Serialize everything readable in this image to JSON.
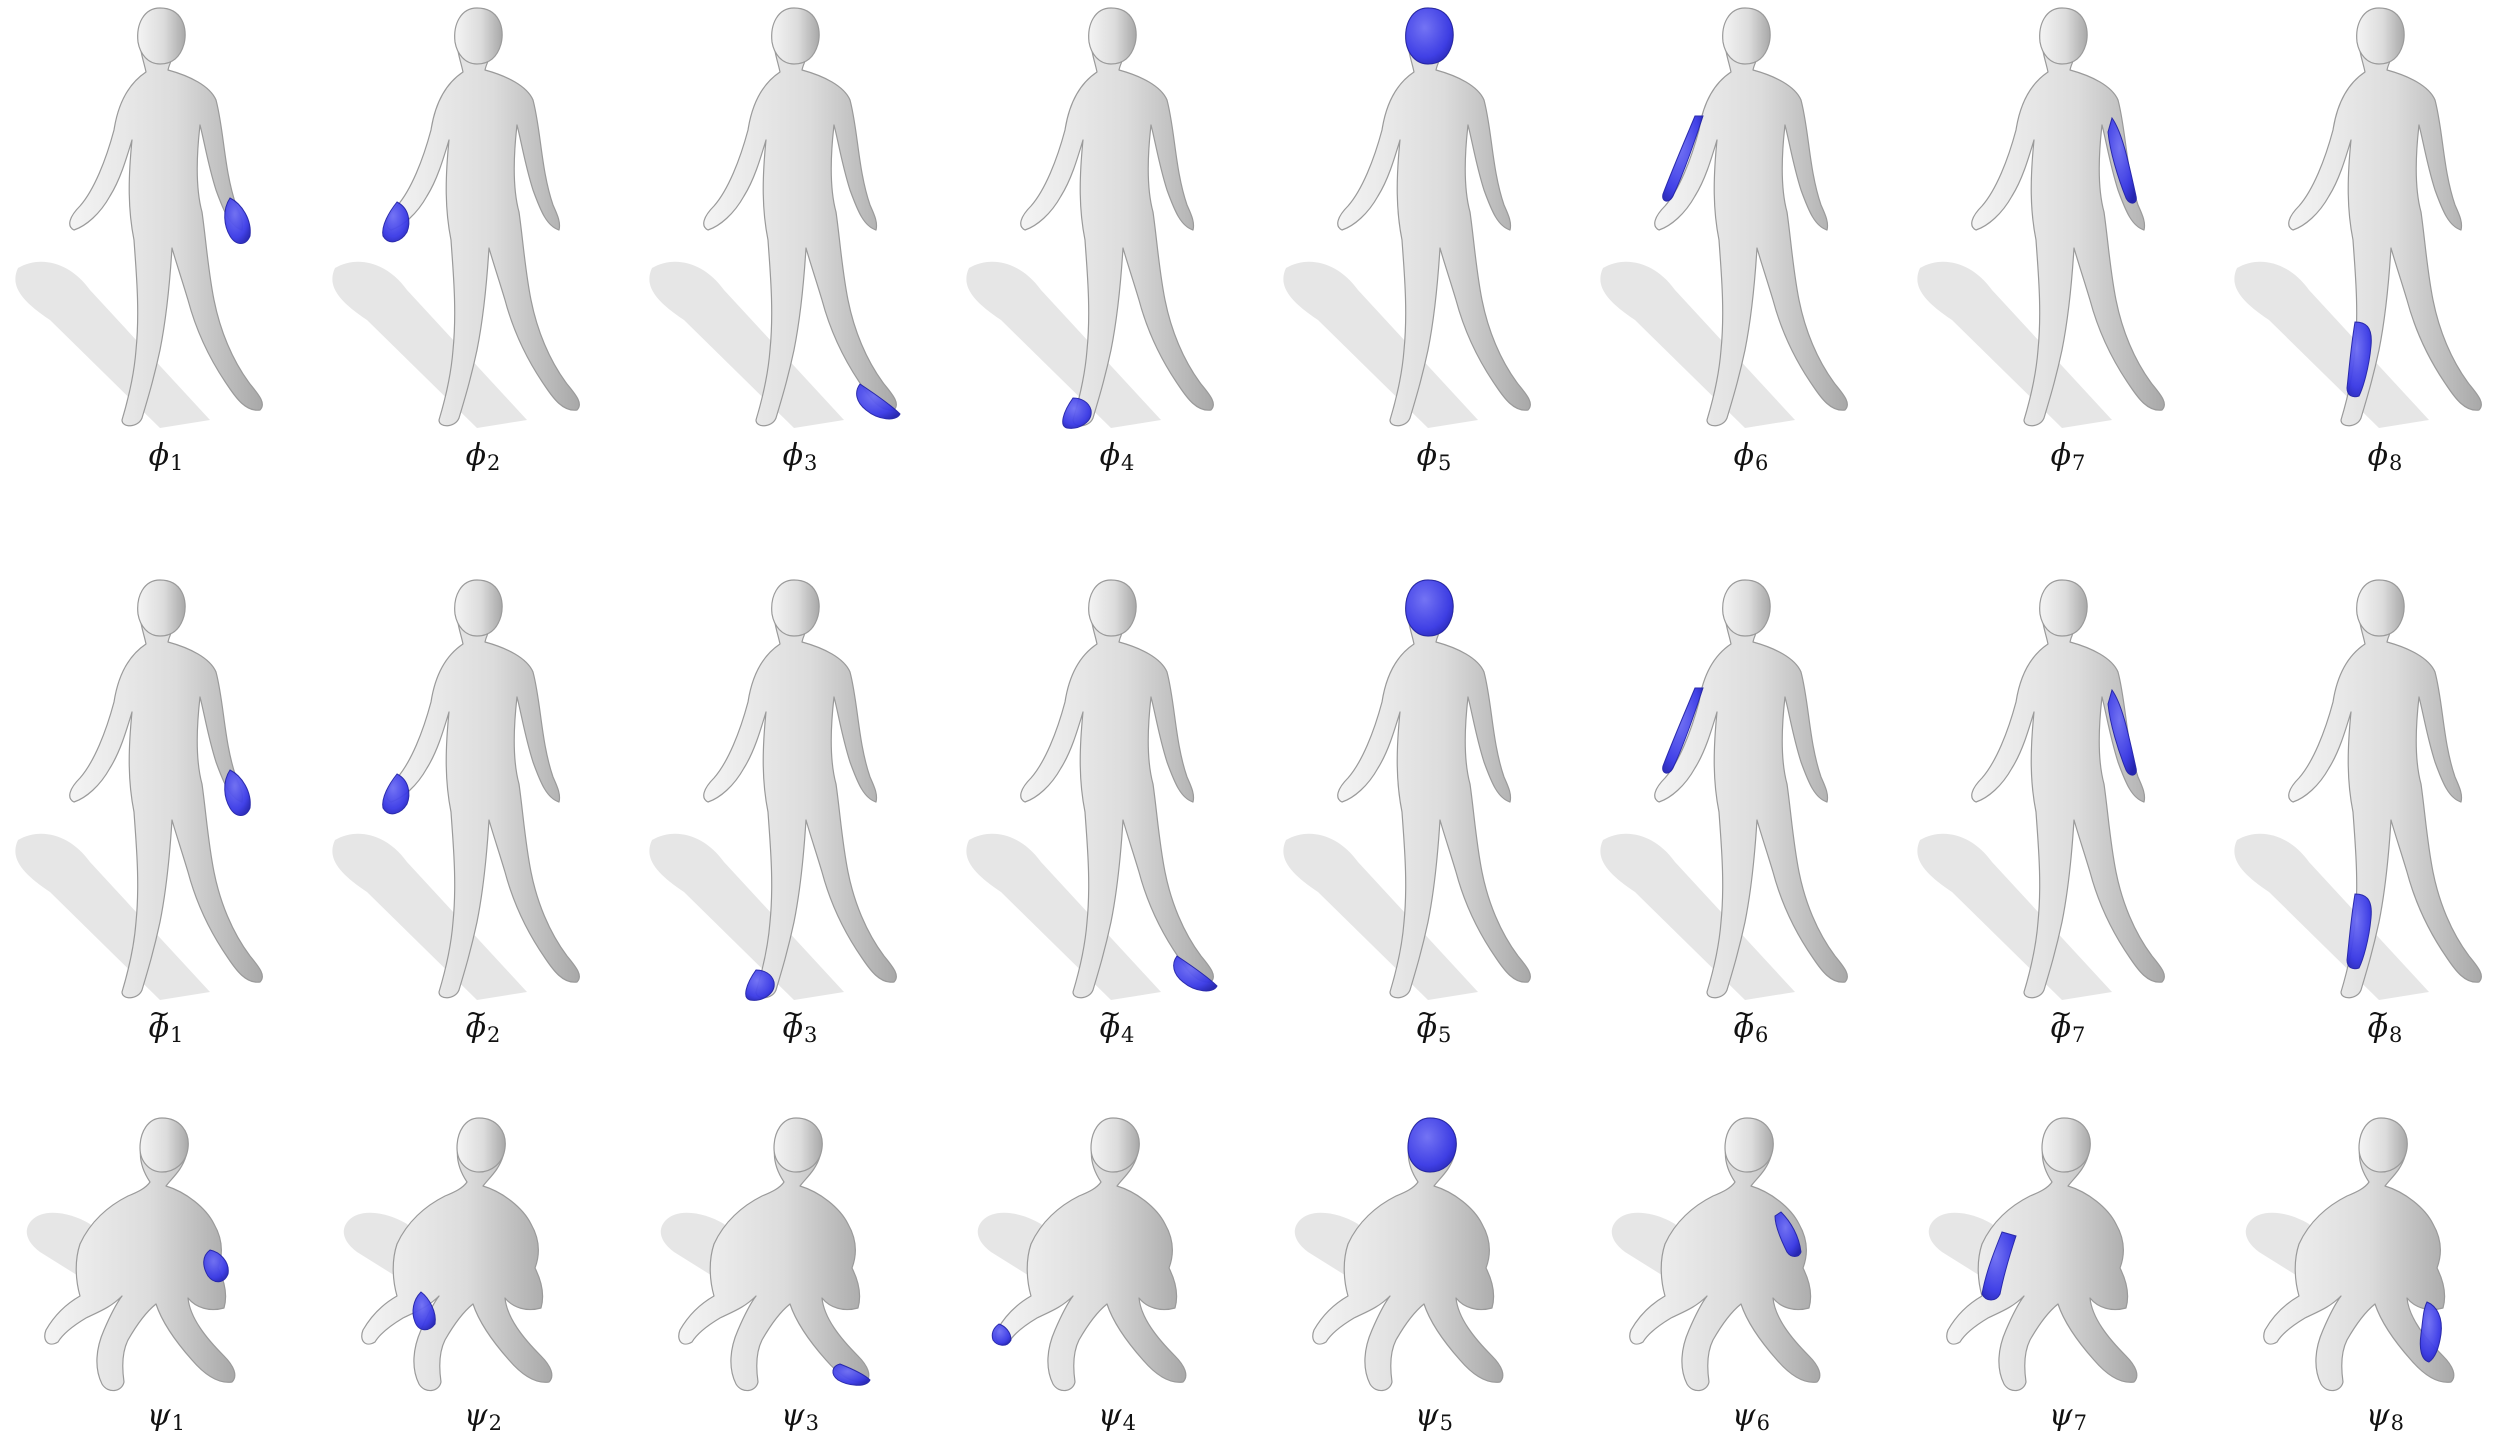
{
  "figure": {
    "highlight_color": "#3838e6",
    "mesh_color": "#dcdcdc",
    "shadow_color": "#e6e6e6",
    "rows": [
      {
        "pose": "standing",
        "cells": [
          {
            "symbol": "ϕ",
            "tilde": "",
            "index": "1",
            "region": "left-hand"
          },
          {
            "symbol": "ϕ",
            "tilde": "",
            "index": "2",
            "region": "right-hand"
          },
          {
            "symbol": "ϕ",
            "tilde": "",
            "index": "3",
            "region": "left-foot"
          },
          {
            "symbol": "ϕ",
            "tilde": "",
            "index": "4",
            "region": "right-foot"
          },
          {
            "symbol": "ϕ",
            "tilde": "",
            "index": "5",
            "region": "head"
          },
          {
            "symbol": "ϕ",
            "tilde": "",
            "index": "6",
            "region": "right-forearm"
          },
          {
            "symbol": "ϕ",
            "tilde": "",
            "index": "7",
            "region": "left-forearm"
          },
          {
            "symbol": "ϕ",
            "tilde": "",
            "index": "8",
            "region": "right-shin"
          }
        ]
      },
      {
        "pose": "standing",
        "cells": [
          {
            "symbol": "ϕ",
            "tilde": "~",
            "index": "1",
            "region": "left-hand"
          },
          {
            "symbol": "ϕ",
            "tilde": "~",
            "index": "2",
            "region": "right-hand"
          },
          {
            "symbol": "ϕ",
            "tilde": "~",
            "index": "3",
            "region": "right-foot"
          },
          {
            "symbol": "ϕ",
            "tilde": "~",
            "index": "4",
            "region": "left-foot"
          },
          {
            "symbol": "ϕ",
            "tilde": "~",
            "index": "5",
            "region": "head"
          },
          {
            "symbol": "ϕ",
            "tilde": "~",
            "index": "6",
            "region": "right-forearm"
          },
          {
            "symbol": "ϕ",
            "tilde": "~",
            "index": "7",
            "region": "left-forearm"
          },
          {
            "symbol": "ϕ",
            "tilde": "~",
            "index": "8",
            "region": "right-shin"
          }
        ]
      },
      {
        "pose": "kneeling",
        "cells": [
          {
            "symbol": "ψ",
            "tilde": "",
            "index": "1",
            "region": "left-hand"
          },
          {
            "symbol": "ψ",
            "tilde": "",
            "index": "2",
            "region": "right-hand"
          },
          {
            "symbol": "ψ",
            "tilde": "",
            "index": "3",
            "region": "left-foot"
          },
          {
            "symbol": "ψ",
            "tilde": "",
            "index": "4",
            "region": "right-foot"
          },
          {
            "symbol": "ψ",
            "tilde": "",
            "index": "5",
            "region": "head"
          },
          {
            "symbol": "ψ",
            "tilde": "",
            "index": "6",
            "region": "left-forearm"
          },
          {
            "symbol": "ψ",
            "tilde": "",
            "index": "7",
            "region": "right-forearm"
          },
          {
            "symbol": "ψ",
            "tilde": "",
            "index": "8",
            "region": "left-shin"
          }
        ]
      }
    ]
  }
}
